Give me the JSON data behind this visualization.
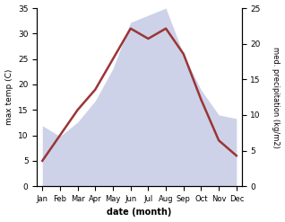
{
  "months": [
    "Jan",
    "Feb",
    "Mar",
    "Apr",
    "May",
    "Jun",
    "Jul",
    "Aug",
    "Sep",
    "Oct",
    "Nov",
    "Dec"
  ],
  "temperature": [
    5,
    10,
    15,
    19,
    25,
    31,
    29,
    31,
    26,
    17,
    9,
    6
  ],
  "precipitation_kg": [
    8.5,
    7,
    9,
    12,
    16.5,
    23,
    24,
    25,
    18.5,
    13.5,
    10,
    9.5
  ],
  "temp_color": "#9b3535",
  "precip_fill_color": "#b8c0e0",
  "precip_alpha": 0.7,
  "xlabel": "date (month)",
  "ylabel_left": "max temp (C)",
  "ylabel_right": "med. precipitation (kg/m2)",
  "ylim_left": [
    0,
    35
  ],
  "ylim_right": [
    0,
    25
  ],
  "yticks_left": [
    0,
    5,
    10,
    15,
    20,
    25,
    30,
    35
  ],
  "yticks_right": [
    0,
    5,
    10,
    15,
    20,
    25
  ],
  "line_width": 1.8,
  "background_color": "#ffffff"
}
